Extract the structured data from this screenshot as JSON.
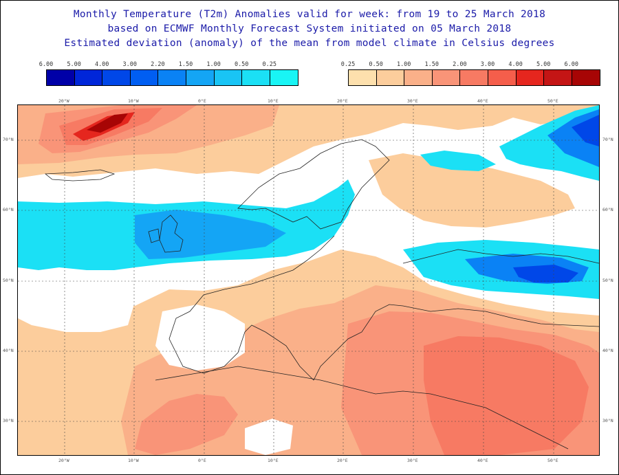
{
  "title": {
    "line1": "Monthly Temperature (T2m) Anomalies valid for week: from 19 to 25 March 2018",
    "line2": "based on ECMWF Monthly Forecast System initiated on 05 March 2018",
    "line3": "Estimated deviation (anomaly) of the mean from model climate in Celsius degrees"
  },
  "legend": {
    "cold": {
      "labels": [
        "6.00",
        "5.00",
        "4.00",
        "3.00",
        "2.20",
        "1.50",
        "1.00",
        "0.50",
        "0.25"
      ],
      "colors": [
        "#0000a8",
        "#0026d9",
        "#0047e8",
        "#005ef2",
        "#0a82f5",
        "#14a5f5",
        "#19c4f5",
        "#1be0f5",
        "#19f5f5"
      ]
    },
    "warm": {
      "labels": [
        "0.25",
        "0.50",
        "1.00",
        "1.50",
        "2.00",
        "3.00",
        "4.00",
        "5.00",
        "6.00"
      ],
      "colors": [
        "#fde0ad",
        "#fccd9c",
        "#fab089",
        "#f99478",
        "#f77a63",
        "#f55e4b",
        "#e5261e",
        "#c41515",
        "#a70505"
      ]
    }
  },
  "map": {
    "land_outline_color": "#222222",
    "grid": "dotted",
    "lon_labels": [
      "20°W",
      "10°W",
      "0°E",
      "10°E",
      "20°E",
      "30°E",
      "40°E",
      "50°E"
    ],
    "lat_labels": [
      "70°N",
      "60°N",
      "50°N",
      "40°N",
      "30°N"
    ]
  }
}
